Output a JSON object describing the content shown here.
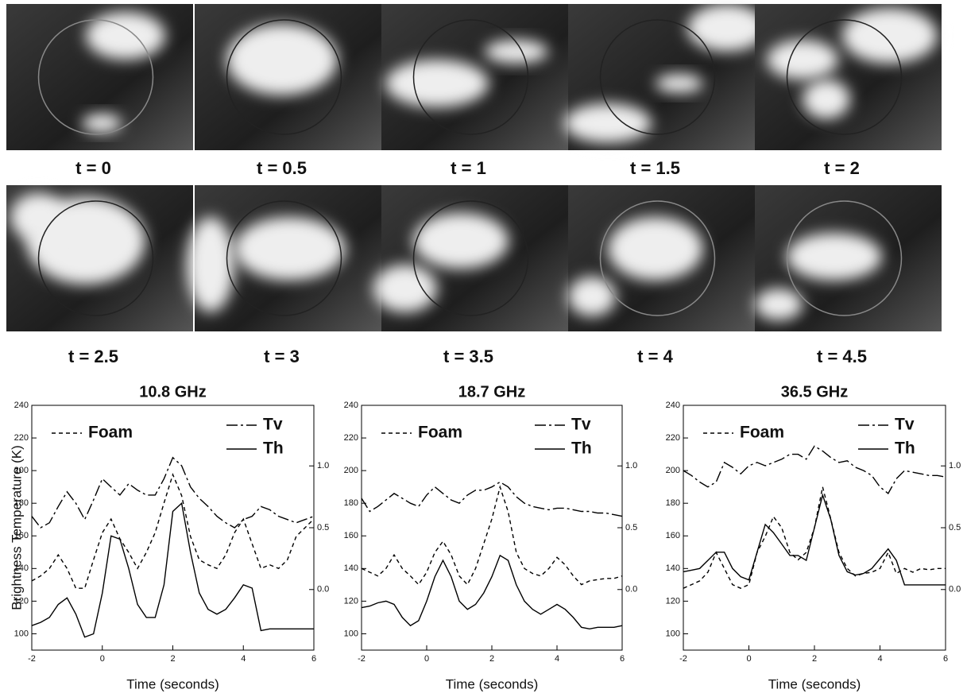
{
  "panels": [
    {
      "label": "t = 0"
    },
    {
      "label": "t = 0.5"
    },
    {
      "label": "t = 1"
    },
    {
      "label": "t = 1.5"
    },
    {
      "label": "t = 2"
    },
    {
      "label": "t = 2.5"
    },
    {
      "label": "t = 3"
    },
    {
      "label": "t = 3.5"
    },
    {
      "label": "t = 4"
    },
    {
      "label": "t = 4.5"
    }
  ],
  "chart_data": [
    {
      "type": "line",
      "title": "10.8 GHz",
      "xlabel": "Time (seconds)",
      "ylabel": "Brightness Temperature (K)",
      "x": [
        -2,
        -1.75,
        -1.5,
        -1.25,
        -1,
        -0.75,
        -0.5,
        -0.25,
        0,
        0.25,
        0.5,
        0.75,
        1,
        1.25,
        1.5,
        1.75,
        2,
        2.25,
        2.5,
        2.75,
        3,
        3.25,
        3.5,
        3.75,
        4,
        4.25,
        4.5,
        4.75,
        5,
        5.25,
        5.5,
        5.75,
        6
      ],
      "xlim": [
        -2,
        6
      ],
      "xticks": [
        -2,
        0,
        2,
        4,
        6
      ],
      "ylim": [
        90,
        240
      ],
      "yticks": [
        100,
        120,
        140,
        160,
        180,
        200,
        220,
        240
      ],
      "y2lim": [
        -0.49,
        1.49
      ],
      "y2ticks": [
        {
          "value": 0,
          "label": "0.0"
        },
        0.5,
        {
          "value": 1,
          "label": "1.0"
        }
      ],
      "series": [
        {
          "name": "Foam",
          "color": "#000000",
          "style": "dashed",
          "axis": "y2",
          "values": [
            0.07,
            0.11,
            0.17,
            0.28,
            0.17,
            0.01,
            0.01,
            0.24,
            0.46,
            0.57,
            0.41,
            0.3,
            0.17,
            0.3,
            0.46,
            0.7,
            0.93,
            0.76,
            0.43,
            0.24,
            0.2,
            0.17,
            0.28,
            0.46,
            0.57,
            0.37,
            0.17,
            0.2,
            0.17,
            0.24,
            0.43,
            0.5,
            0.57
          ]
        },
        {
          "name": "Tv",
          "color": "#000000",
          "style": "dashdot",
          "values": [
            172,
            165,
            168,
            178,
            187,
            180,
            170,
            182,
            195,
            190,
            185,
            192,
            188,
            185,
            185,
            195,
            208,
            203,
            190,
            183,
            178,
            172,
            168,
            165,
            170,
            172,
            178,
            176,
            172,
            170,
            168,
            170,
            172
          ]
        },
        {
          "name": "Th",
          "color": "#000000",
          "style": "solid",
          "values": [
            105,
            107,
            110,
            118,
            122,
            112,
            98,
            100,
            125,
            160,
            158,
            140,
            118,
            110,
            110,
            130,
            175,
            180,
            150,
            125,
            115,
            112,
            115,
            122,
            130,
            128,
            102,
            103,
            103,
            103,
            103,
            103,
            103
          ]
        }
      ]
    },
    {
      "type": "line",
      "title": "18.7 GHz",
      "xlabel": "Time (seconds)",
      "x": [
        -2,
        -1.75,
        -1.5,
        -1.25,
        -1,
        -0.75,
        -0.5,
        -0.25,
        0,
        0.25,
        0.5,
        0.75,
        1,
        1.25,
        1.5,
        1.75,
        2,
        2.25,
        2.5,
        2.75,
        3,
        3.25,
        3.5,
        3.75,
        4,
        4.25,
        4.5,
        4.75,
        5,
        5.25,
        5.5,
        5.75,
        6
      ],
      "xlim": [
        -2,
        6
      ],
      "xticks": [
        -2,
        0,
        2,
        4,
        6
      ],
      "ylim": [
        90,
        240
      ],
      "yticks": [
        100,
        120,
        140,
        160,
        180,
        200,
        220,
        240
      ],
      "y2lim": [
        -0.49,
        1.49
      ],
      "y2ticks": [
        {
          "value": 0,
          "label": "0.0"
        },
        0.5,
        {
          "value": 1,
          "label": "1.0"
        }
      ],
      "series": [
        {
          "name": "Foam",
          "color": "#000000",
          "style": "dashed",
          "axis": "y2",
          "values": [
            0.17,
            0.14,
            0.11,
            0.17,
            0.28,
            0.17,
            0.11,
            0.04,
            0.14,
            0.3,
            0.39,
            0.28,
            0.11,
            0.04,
            0.17,
            0.37,
            0.57,
            0.83,
            0.63,
            0.3,
            0.17,
            0.13,
            0.11,
            0.17,
            0.26,
            0.2,
            0.11,
            0.04,
            0.07,
            0.08,
            0.09,
            0.09,
            0.11
          ]
        },
        {
          "name": "Tv",
          "color": "#000000",
          "style": "dashdot",
          "values": [
            183,
            175,
            178,
            182,
            186,
            183,
            180,
            178,
            185,
            190,
            186,
            182,
            180,
            185,
            188,
            188,
            190,
            193,
            190,
            184,
            180,
            178,
            177,
            176,
            177,
            177,
            176,
            175,
            175,
            174,
            174,
            173,
            172
          ]
        },
        {
          "name": "Th",
          "color": "#000000",
          "style": "solid",
          "values": [
            116,
            117,
            119,
            120,
            118,
            110,
            105,
            108,
            120,
            135,
            145,
            135,
            120,
            115,
            118,
            125,
            135,
            148,
            145,
            130,
            120,
            115,
            112,
            115,
            118,
            115,
            110,
            104,
            103,
            104,
            104,
            104,
            105
          ]
        }
      ]
    },
    {
      "type": "line",
      "title": "36.5 GHz",
      "xlabel": "Time (seconds)",
      "x": [
        -2,
        -1.75,
        -1.5,
        -1.25,
        -1,
        -0.75,
        -0.5,
        -0.25,
        0,
        0.25,
        0.5,
        0.75,
        1,
        1.25,
        1.5,
        1.75,
        2,
        2.25,
        2.5,
        2.75,
        3,
        3.25,
        3.5,
        3.75,
        4,
        4.25,
        4.5,
        4.75,
        5,
        5.25,
        5.5,
        5.75,
        6
      ],
      "xlim": [
        -2,
        6
      ],
      "xticks": [
        -2,
        0,
        2,
        4,
        6
      ],
      "ylim": [
        90,
        240
      ],
      "yticks": [
        100,
        120,
        140,
        160,
        180,
        200,
        220,
        240
      ],
      "y2lim": [
        -0.49,
        1.49
      ],
      "y2ticks": [
        {
          "value": 0,
          "label": "0.0"
        },
        0.5,
        {
          "value": 1,
          "label": "1.0"
        }
      ],
      "series": [
        {
          "name": "Foam",
          "color": "#000000",
          "style": "dashed",
          "axis": "y2",
          "values": [
            0.01,
            0.04,
            0.07,
            0.14,
            0.3,
            0.17,
            0.04,
            0.01,
            0.04,
            0.3,
            0.43,
            0.59,
            0.5,
            0.3,
            0.24,
            0.3,
            0.5,
            0.83,
            0.57,
            0.3,
            0.17,
            0.11,
            0.13,
            0.14,
            0.17,
            0.3,
            0.13,
            0.17,
            0.14,
            0.17,
            0.16,
            0.17,
            0.17
          ]
        },
        {
          "name": "Tv",
          "color": "#000000",
          "style": "dashdot",
          "values": [
            200,
            197,
            193,
            190,
            193,
            205,
            202,
            198,
            203,
            205,
            203,
            205,
            207,
            210,
            210,
            207,
            215,
            212,
            208,
            205,
            206,
            202,
            200,
            197,
            190,
            186,
            195,
            200,
            199,
            198,
            197,
            197,
            196
          ]
        },
        {
          "name": "Th",
          "color": "#000000",
          "style": "solid",
          "values": [
            138,
            139,
            140,
            145,
            150,
            150,
            140,
            135,
            133,
            150,
            167,
            162,
            155,
            148,
            148,
            145,
            165,
            185,
            170,
            148,
            138,
            136,
            137,
            140,
            146,
            152,
            145,
            130,
            130,
            130,
            130,
            130,
            130
          ]
        }
      ]
    }
  ]
}
